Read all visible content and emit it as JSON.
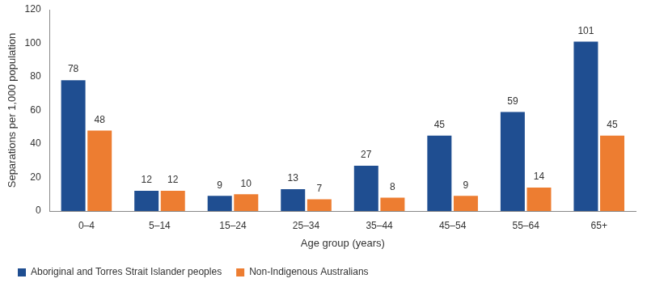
{
  "chart_data": {
    "type": "bar",
    "categories": [
      "0–4",
      "5–14",
      "15–24",
      "25–34",
      "35–44",
      "45–54",
      "55–64",
      "65+"
    ],
    "series": [
      {
        "name": "Aboriginal and Torres Strait Islander peoples",
        "color": "#1f4e91",
        "values": [
          78,
          12,
          9,
          13,
          27,
          45,
          59,
          101
        ]
      },
      {
        "name": "Non-Indigenous Australians",
        "color": "#ed7d31",
        "values": [
          48,
          12,
          10,
          7,
          8,
          9,
          14,
          45
        ]
      }
    ],
    "x_label": "Age group (years)",
    "y_label": "Separations per 1,000 population",
    "ylim": [
      0,
      120
    ],
    "yticks": [
      0,
      20,
      40,
      60,
      80,
      100,
      120
    ],
    "grid": false,
    "legend": "bottom-left",
    "data_labels": true
  }
}
